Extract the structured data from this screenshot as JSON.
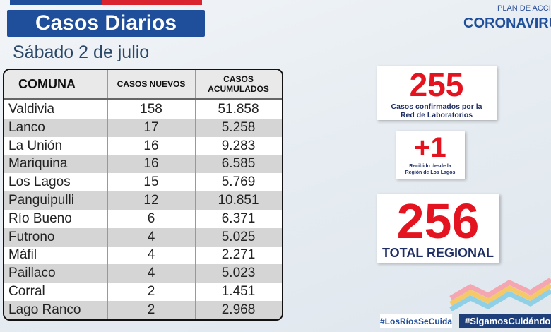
{
  "header": {
    "title": "Casos Diarios",
    "date": "Sábado 2 de julio",
    "logo_top": "PLAN DE ACCIÓN",
    "logo_main": "CORONAVIRUS"
  },
  "table": {
    "columns": [
      "COMUNA",
      "CASOS NUEVOS",
      "CASOS ACUMULADOS"
    ],
    "rows": [
      [
        "Valdivia",
        158,
        "51.858"
      ],
      [
        "Lanco",
        17,
        "5.258"
      ],
      [
        "La Unión",
        16,
        "9.283"
      ],
      [
        "Mariquina",
        16,
        "6.585"
      ],
      [
        "Los Lagos",
        15,
        "5.769"
      ],
      [
        "Panguipulli",
        12,
        "10.851"
      ],
      [
        "Río Bueno",
        6,
        "6.371"
      ],
      [
        "Futrono",
        4,
        "5.025"
      ],
      [
        "Máfil",
        4,
        "2.271"
      ],
      [
        "Paillaco",
        4,
        "5.023"
      ],
      [
        "Corral",
        2,
        "1.451"
      ],
      [
        "Lago Ranco",
        2,
        "2.968"
      ]
    ]
  },
  "cards": [
    {
      "value": "255",
      "caption": "Casos confirmados  por la Red de Laboratorios"
    },
    {
      "value": "+1",
      "caption": "Recibido  desde la Región de Los Lagos"
    },
    {
      "value": "256",
      "caption": "TOTAL REGIONAL"
    }
  ],
  "hashtags": [
    "#LosRíosSeCuida",
    "#SigamosCuidándonos"
  ]
}
